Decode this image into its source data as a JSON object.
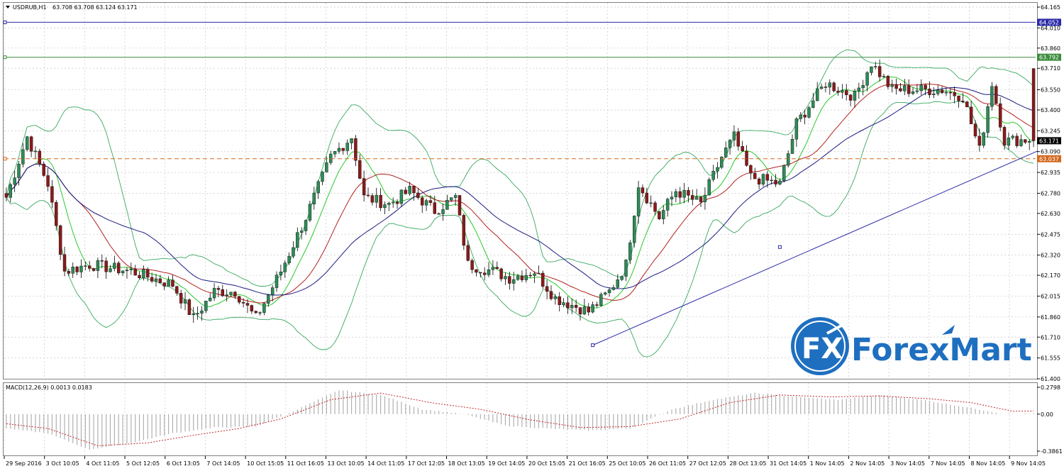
{
  "chart_data": [
    {
      "type": "candlestick",
      "title": "USDRUB,H1",
      "ohlc_header": "63.708 63.708 63.124 63.171",
      "ylim": [
        61.4,
        64.165
      ],
      "y_ticks": [
        "64.165",
        "64.010",
        "63.860",
        "63.710",
        "63.550",
        "63.400",
        "63.245",
        "63.090",
        "62.935",
        "62.780",
        "62.630",
        "62.475",
        "62.320",
        "62.170",
        "62.015",
        "61.860",
        "61.710",
        "61.555",
        "61.400"
      ],
      "x_ticks": [
        "29 Sep 2016",
        "3 Oct 10:05",
        "4 Oct 11:05",
        "5 Oct 12:05",
        "6 Oct 13:05",
        "7 Oct 14:05",
        "10 Oct 15:05",
        "11 Oct 16:05",
        "13 Oct 10:05",
        "14 Oct 11:05",
        "17 Oct 12:05",
        "18 Oct 13:05",
        "19 Oct 14:05",
        "20 Oct 15:05",
        "21 Oct 16:05",
        "25 Oct 10:05",
        "26 Oct 11:05",
        "27 Oct 12:05",
        "28 Oct 13:05",
        "31 Oct 14:05",
        "1 Nov 14:05",
        "2 Nov 14:05",
        "3 Nov 14:05",
        "7 Nov 14:05",
        "8 Nov 14:05",
        "9 Nov 14:05"
      ],
      "anchors": [
        [
          0,
          62.75
        ],
        [
          5,
          63.2
        ],
        [
          10,
          62.85
        ],
        [
          14,
          62.2
        ],
        [
          20,
          62.25
        ],
        [
          30,
          62.2
        ],
        [
          40,
          62.1
        ],
        [
          45,
          61.85
        ],
        [
          50,
          62.05
        ],
        [
          55,
          62.05
        ],
        [
          60,
          61.85
        ],
        [
          66,
          62.2
        ],
        [
          72,
          62.6
        ],
        [
          78,
          63.05
        ],
        [
          83,
          63.2
        ],
        [
          86,
          62.75
        ],
        [
          92,
          62.7
        ],
        [
          97,
          62.8
        ],
        [
          103,
          62.65
        ],
        [
          108,
          62.75
        ],
        [
          111,
          62.25
        ],
        [
          117,
          62.2
        ],
        [
          121,
          62.15
        ],
        [
          127,
          62.2
        ],
        [
          132,
          62.0
        ],
        [
          140,
          61.9
        ],
        [
          145,
          62.05
        ],
        [
          149,
          62.25
        ],
        [
          152,
          62.85
        ],
        [
          157,
          62.6
        ],
        [
          161,
          62.8
        ],
        [
          167,
          62.7
        ],
        [
          172,
          63.05
        ],
        [
          175,
          63.2
        ],
        [
          179,
          62.9
        ],
        [
          186,
          62.85
        ],
        [
          190,
          63.3
        ],
        [
          197,
          63.6
        ],
        [
          204,
          63.5
        ],
        [
          208,
          63.75
        ],
        [
          213,
          63.55
        ],
        [
          218,
          63.55
        ],
        [
          225,
          63.55
        ],
        [
          230,
          63.5
        ],
        [
          234,
          63.1
        ],
        [
          237,
          63.6
        ],
        [
          240,
          63.17
        ]
      ],
      "last_ohlc": {
        "open": 63.708,
        "high": 63.708,
        "low": 63.124,
        "close": 63.171
      },
      "levels": [
        {
          "value": 64.052,
          "label": "64.052",
          "color": "#2a2aa8",
          "style": "solid"
        },
        {
          "value": 63.792,
          "label": "63.792",
          "color": "#3c8c3c",
          "style": "solid"
        },
        {
          "value": 63.171,
          "label": "63.171",
          "color": "#000000",
          "style": "none"
        },
        {
          "value": 63.037,
          "label": "63.037",
          "color": "#d2691e",
          "style": "dashed"
        }
      ],
      "trendline": {
        "from": [
          141,
          61.65
        ],
        "to": [
          248,
          63.095
        ],
        "mid": [
          186,
          62.38
        ],
        "color": "#2a2aa8"
      },
      "indicators": {
        "bollinger_color": "#3aa860",
        "ma_fast_color": "#2ac82a",
        "ma_mid_color": "#b22222",
        "ma_slow_color": "#1a1a80",
        "bull_color": "#2e8b57",
        "bear_color": "#8b1a1a"
      }
    },
    {
      "type": "macd",
      "label": "MACD(12,26,9) 0.0013 0.0183",
      "ylim": [
        -0.3861,
        0.2798
      ],
      "y_ticks": [
        "0.2798",
        "0.00",
        "-0.3861"
      ],
      "anchors": [
        [
          0,
          -0.15
        ],
        [
          10,
          -0.2
        ],
        [
          20,
          -0.37
        ],
        [
          30,
          -0.3
        ],
        [
          40,
          -0.2
        ],
        [
          50,
          -0.14
        ],
        [
          60,
          -0.13
        ],
        [
          70,
          0.05
        ],
        [
          80,
          0.25
        ],
        [
          90,
          0.2
        ],
        [
          100,
          0.05
        ],
        [
          110,
          0.0
        ],
        [
          120,
          -0.12
        ],
        [
          130,
          -0.15
        ],
        [
          140,
          -0.17
        ],
        [
          150,
          -0.15
        ],
        [
          160,
          0.05
        ],
        [
          170,
          0.15
        ],
        [
          180,
          0.22
        ],
        [
          190,
          0.18
        ],
        [
          200,
          0.15
        ],
        [
          210,
          0.2
        ],
        [
          220,
          0.15
        ],
        [
          230,
          0.08
        ],
        [
          240,
          0.0013
        ]
      ],
      "signal_anchors": [
        [
          0,
          -0.1
        ],
        [
          10,
          -0.15
        ],
        [
          22,
          -0.33
        ],
        [
          34,
          -0.3
        ],
        [
          45,
          -0.22
        ],
        [
          56,
          -0.15
        ],
        [
          66,
          -0.05
        ],
        [
          78,
          0.15
        ],
        [
          90,
          0.22
        ],
        [
          102,
          0.12
        ],
        [
          114,
          0.05
        ],
        [
          126,
          -0.06
        ],
        [
          138,
          -0.14
        ],
        [
          150,
          -0.13
        ],
        [
          162,
          -0.05
        ],
        [
          174,
          0.12
        ],
        [
          186,
          0.2
        ],
        [
          198,
          0.18
        ],
        [
          210,
          0.19
        ],
        [
          222,
          0.16
        ],
        [
          232,
          0.12
        ],
        [
          242,
          0.03
        ]
      ],
      "bar_color": "#b0b0b0",
      "signal_color": "#c0282a"
    }
  ],
  "logo": {
    "brand": "ForexMart",
    "mark": "FX"
  }
}
